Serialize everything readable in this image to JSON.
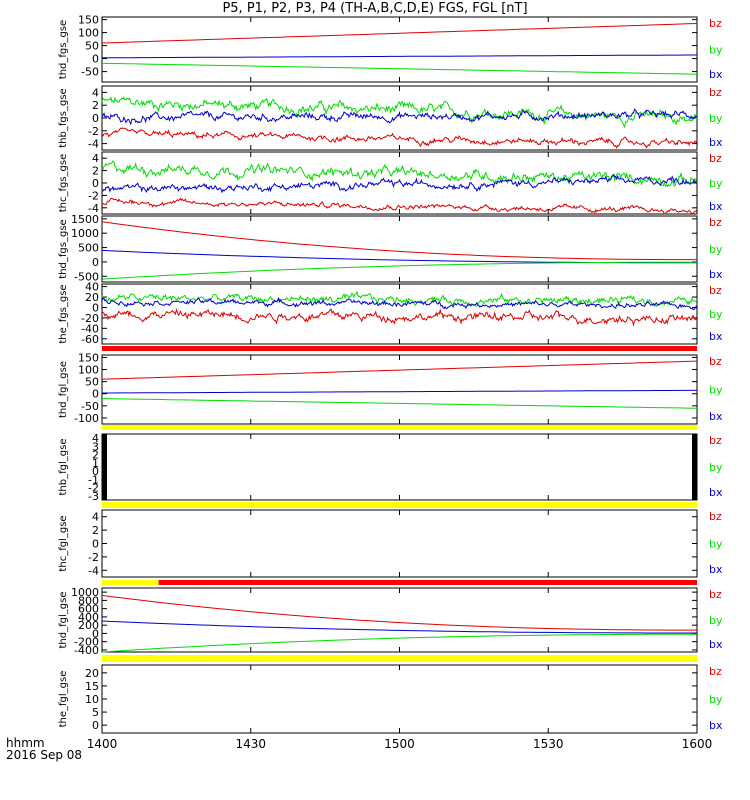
{
  "title": "P5, P1, P2, P3, P4 (TH-A,B,C,D,E) FGS, FGL [nT]",
  "footer": {
    "time_label": "hhmm",
    "date_label": "2016 Sep 08"
  },
  "colors": {
    "bz": "#dd0000",
    "by": "#00dd00",
    "bx": "#0000cc",
    "bar_red": "#ff0000",
    "bar_yellow": "#ffff00",
    "bar_black": "#000000"
  },
  "chart_data": {
    "type": "line",
    "x_axis": {
      "label": "",
      "range": [
        "1400",
        "1600"
      ],
      "ticks": [
        "1400",
        "1430",
        "1500",
        "1530",
        "1600"
      ]
    },
    "legend": [
      "bz",
      "by",
      "bx"
    ],
    "panels": [
      {
        "name": "thd_fgs_gse",
        "yticks": [
          "150",
          "100",
          "50",
          "0",
          "-50"
        ],
        "yrange": [
          -90,
          160
        ],
        "series": [
          {
            "name": "bz",
            "start": 60,
            "end": 135,
            "noise": 0
          },
          {
            "name": "by",
            "start": -18,
            "end": -60,
            "noise": 0
          },
          {
            "name": "bx",
            "start": 3,
            "end": 14,
            "noise": 0
          }
        ]
      },
      {
        "name": "thb_fgs_gse",
        "yticks": [
          "4",
          "2",
          "0",
          "-2",
          "-4"
        ],
        "yrange": [
          -5,
          5
        ],
        "series": [
          {
            "name": "by",
            "start": 2.5,
            "end": 0,
            "noise": 1.0
          },
          {
            "name": "bx",
            "start": 0,
            "end": 0.5,
            "noise": 0.7
          },
          {
            "name": "bz",
            "start": -2.5,
            "end": -4.0,
            "noise": 0.6
          }
        ]
      },
      {
        "name": "thc_fgs_gse",
        "yticks": [
          "4",
          "2",
          "0",
          "-2",
          "-4"
        ],
        "yrange": [
          -5,
          5
        ],
        "series": [
          {
            "name": "by",
            "start": 2.5,
            "end": 0.5,
            "noise": 1.0
          },
          {
            "name": "bx",
            "start": -1.0,
            "end": 0.5,
            "noise": 0.7
          },
          {
            "name": "bz",
            "start": -3.0,
            "end": -4.5,
            "noise": 0.5
          }
        ]
      },
      {
        "name": "thd_fgs_gse",
        "yticks": [
          "1500",
          "1000",
          "500",
          "0",
          "-500"
        ],
        "yrange": [
          -700,
          1600
        ],
        "series": [
          {
            "name": "bz",
            "start": 1400,
            "end": 80,
            "noise": 0
          },
          {
            "name": "bx",
            "start": 400,
            "end": -30,
            "noise": 0
          },
          {
            "name": "by",
            "start": -600,
            "end": -10,
            "noise": 0
          }
        ]
      },
      {
        "name": "the_fgs_gse",
        "yticks": [
          "40",
          "20",
          "0",
          "-20",
          "-40",
          "-60"
        ],
        "yrange": [
          -70,
          45
        ],
        "series": [
          {
            "name": "by",
            "start": 18,
            "end": 12,
            "noise": 9
          },
          {
            "name": "bx",
            "start": 12,
            "end": 3,
            "noise": 6
          },
          {
            "name": "bz",
            "start": -12,
            "end": -22,
            "noise": 10
          }
        ]
      },
      {
        "name": "thd_fgl_gse",
        "yticks": [
          "150",
          "100",
          "50",
          "0",
          "-50",
          "-100"
        ],
        "yrange": [
          -125,
          160
        ],
        "series": [
          {
            "name": "bz",
            "start": 60,
            "end": 135,
            "noise": 0
          },
          {
            "name": "bx",
            "start": 3,
            "end": 14,
            "noise": 0
          },
          {
            "name": "by",
            "start": -20,
            "end": -60,
            "noise": 0
          }
        ]
      },
      {
        "name": "thb_fgl_gse",
        "yticks": [
          "4",
          "3",
          "2",
          "1",
          "0",
          "-1",
          "-2",
          "-3"
        ],
        "yrange": [
          -3.5,
          4.5
        ],
        "series": []
      },
      {
        "name": "thc_fgl_gse",
        "yticks": [
          "4",
          "2",
          "0",
          "-2",
          "-4"
        ],
        "yrange": [
          -5,
          5
        ],
        "series": []
      },
      {
        "name": "thd_fgl_gse",
        "yticks": [
          "1000",
          "800",
          "600",
          "400",
          "200",
          "0",
          "-200",
          "-400"
        ],
        "yrange": [
          -450,
          1100
        ],
        "series": [
          {
            "name": "bz",
            "start": 920,
            "end": 80,
            "noise": 0
          },
          {
            "name": "bx",
            "start": 300,
            "end": 10,
            "noise": 0
          },
          {
            "name": "by",
            "start": -450,
            "end": -20,
            "noise": 0
          }
        ]
      },
      {
        "name": "the_fgl_gse",
        "yticks": [
          "20",
          "15",
          "10",
          "5",
          "0"
        ],
        "yrange": [
          -3,
          23
        ],
        "series": []
      }
    ]
  }
}
